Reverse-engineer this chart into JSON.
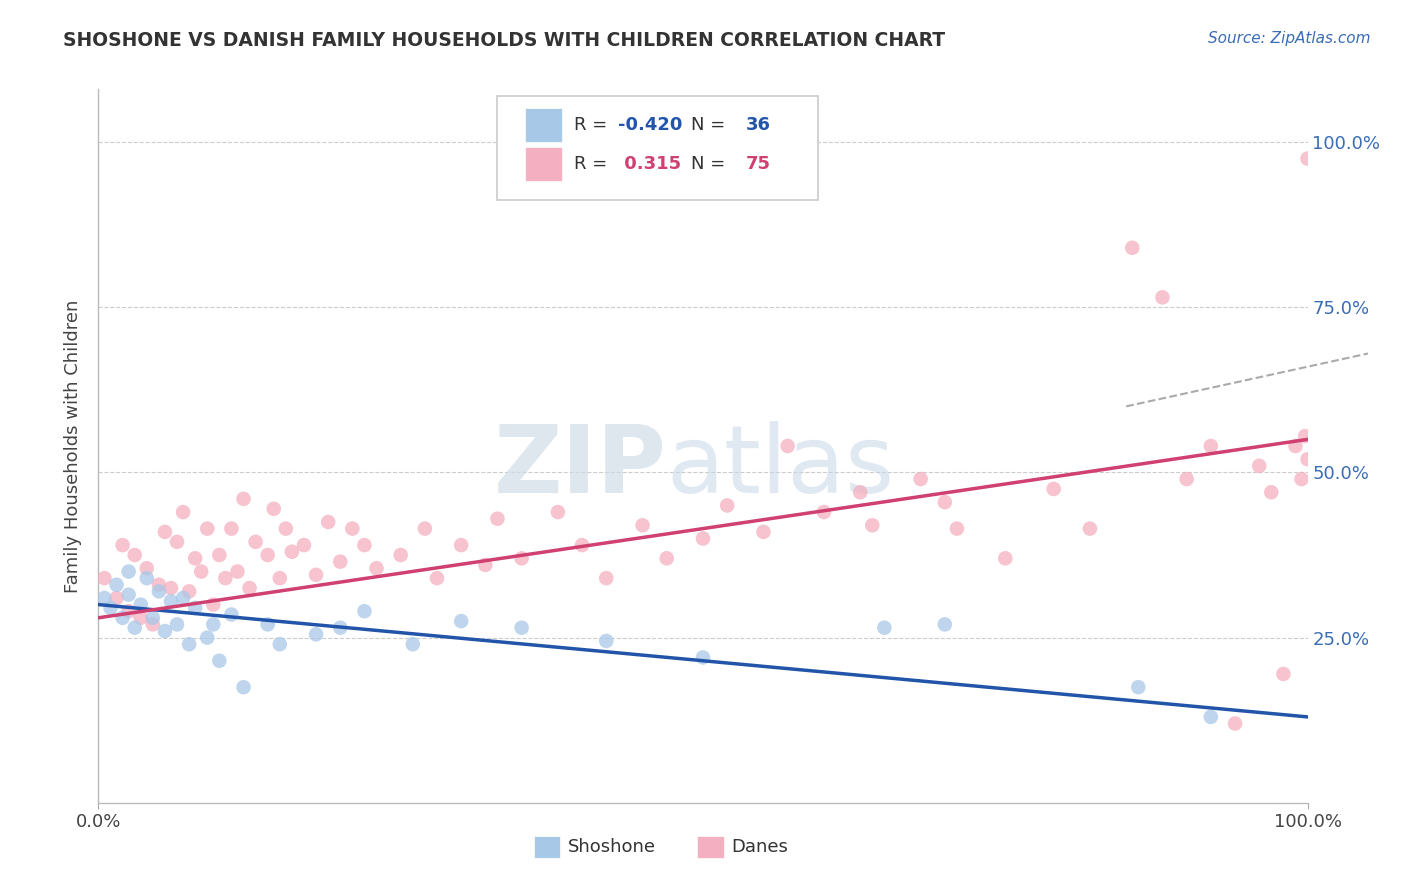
{
  "title": "SHOSHONE VS DANISH FAMILY HOUSEHOLDS WITH CHILDREN CORRELATION CHART",
  "source_text": "Source: ZipAtlas.com",
  "ylabel": "Family Households with Children",
  "xlim": [
    0.0,
    1.0
  ],
  "ylim": [
    0.0,
    1.08
  ],
  "xtick_labels": [
    "0.0%",
    "100.0%"
  ],
  "ytick_positions": [
    0.25,
    0.5,
    0.75,
    1.0
  ],
  "ytick_labels": [
    "25.0%",
    "50.0%",
    "75.0%",
    "100.0%"
  ],
  "shoshone_color": "#a8c8e8",
  "danes_color": "#f4afc0",
  "shoshone_line_color": "#2255aa",
  "danes_line_color": "#d04070",
  "shoshone_R": -0.42,
  "shoshone_N": 36,
  "danes_R": 0.315,
  "danes_N": 75,
  "watermark_zip": "ZIP",
  "watermark_atlas": "atlas",
  "background_color": "#ffffff",
  "grid_color": "#cccccc",
  "shoshone_x": [
    0.005,
    0.01,
    0.015,
    0.02,
    0.025,
    0.025,
    0.03,
    0.035,
    0.04,
    0.045,
    0.05,
    0.055,
    0.06,
    0.065,
    0.07,
    0.075,
    0.08,
    0.09,
    0.095,
    0.1,
    0.11,
    0.12,
    0.14,
    0.15,
    0.18,
    0.2,
    0.22,
    0.26,
    0.3,
    0.35,
    0.42,
    0.5,
    0.65,
    0.7,
    0.86,
    0.92
  ],
  "shoshone_y": [
    0.31,
    0.295,
    0.33,
    0.28,
    0.315,
    0.35,
    0.265,
    0.3,
    0.34,
    0.28,
    0.32,
    0.26,
    0.305,
    0.27,
    0.31,
    0.24,
    0.295,
    0.25,
    0.27,
    0.215,
    0.285,
    0.175,
    0.27,
    0.24,
    0.255,
    0.265,
    0.29,
    0.24,
    0.275,
    0.265,
    0.245,
    0.22,
    0.265,
    0.27,
    0.175,
    0.13
  ],
  "danes_x": [
    0.005,
    0.015,
    0.02,
    0.025,
    0.03,
    0.035,
    0.04,
    0.045,
    0.05,
    0.055,
    0.06,
    0.065,
    0.07,
    0.075,
    0.08,
    0.085,
    0.09,
    0.095,
    0.1,
    0.105,
    0.11,
    0.115,
    0.12,
    0.125,
    0.13,
    0.14,
    0.145,
    0.15,
    0.155,
    0.16,
    0.17,
    0.18,
    0.19,
    0.2,
    0.21,
    0.22,
    0.23,
    0.25,
    0.27,
    0.28,
    0.3,
    0.32,
    0.33,
    0.35,
    0.38,
    0.4,
    0.42,
    0.45,
    0.47,
    0.5,
    0.52,
    0.55,
    0.57,
    0.6,
    0.63,
    0.64,
    0.68,
    0.7,
    0.71,
    0.75,
    0.79,
    0.82,
    0.855,
    0.88,
    0.9,
    0.92,
    0.94,
    0.96,
    0.97,
    0.98,
    0.99,
    0.995,
    0.998,
    1.0,
    1.0
  ],
  "danes_y": [
    0.34,
    0.31,
    0.39,
    0.29,
    0.375,
    0.28,
    0.355,
    0.27,
    0.33,
    0.41,
    0.325,
    0.395,
    0.44,
    0.32,
    0.37,
    0.35,
    0.415,
    0.3,
    0.375,
    0.34,
    0.415,
    0.35,
    0.46,
    0.325,
    0.395,
    0.375,
    0.445,
    0.34,
    0.415,
    0.38,
    0.39,
    0.345,
    0.425,
    0.365,
    0.415,
    0.39,
    0.355,
    0.375,
    0.415,
    0.34,
    0.39,
    0.36,
    0.43,
    0.37,
    0.44,
    0.39,
    0.34,
    0.42,
    0.37,
    0.4,
    0.45,
    0.41,
    0.54,
    0.44,
    0.47,
    0.42,
    0.49,
    0.455,
    0.415,
    0.37,
    0.475,
    0.415,
    0.84,
    0.765,
    0.49,
    0.54,
    0.12,
    0.51,
    0.47,
    0.195,
    0.54,
    0.49,
    0.555,
    0.52,
    0.975
  ]
}
